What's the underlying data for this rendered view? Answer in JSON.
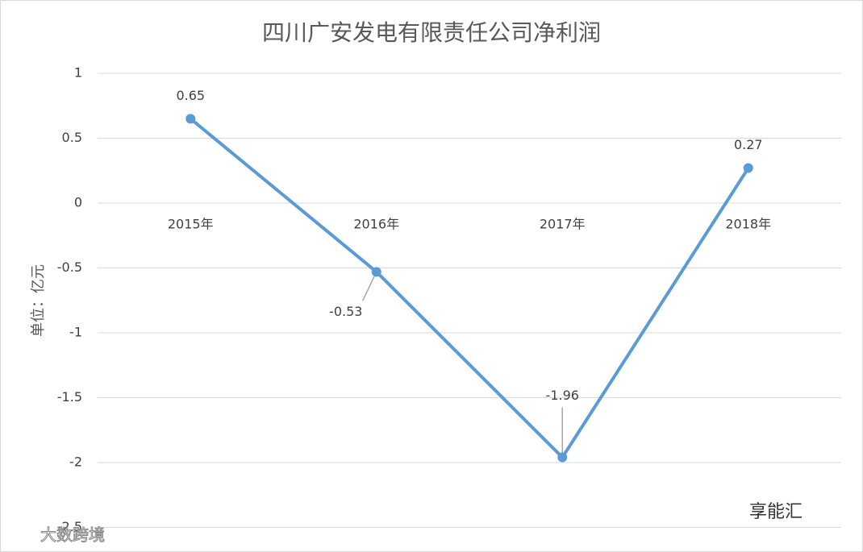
{
  "chart_data": {
    "type": "line",
    "title": "四川广安发电有限责任公司净利润",
    "y_label": "单位：亿元",
    "categories": [
      "2015年",
      "2016年",
      "2017年",
      "2018年"
    ],
    "values": [
      0.65,
      -0.53,
      -1.96,
      0.27
    ],
    "color": "#5b9bd5",
    "ylim": [
      -2.5,
      1
    ],
    "yticks": [
      1,
      0.5,
      0,
      -0.5,
      -1,
      -1.5,
      -2,
      -2.5
    ],
    "grid": true,
    "annotations": [
      "享能汇",
      "大数跨境"
    ]
  }
}
